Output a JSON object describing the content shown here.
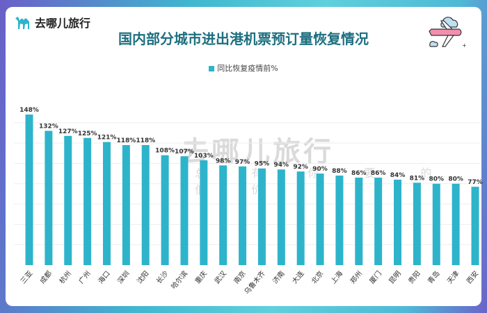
{
  "brand": {
    "name": "去哪儿旅行",
    "watermark": "去哪儿旅行",
    "watermark_sub": "总 有 你 要 的 低 价"
  },
  "chart_data": {
    "type": "bar",
    "title": "国内部分城市进出港机票预订量恢复情况",
    "legend": [
      {
        "name": "同比恢复疫情前%",
        "color": "#2db4cb"
      }
    ],
    "legend_position": "top",
    "categories": [
      "三亚",
      "成都",
      "杭州",
      "广州",
      "海口",
      "深圳",
      "沈阳",
      "长沙",
      "哈尔滨",
      "重庆",
      "武汉",
      "南京",
      "乌鲁木齐",
      "济南",
      "大连",
      "北京",
      "上海",
      "郑州",
      "厦门",
      "昆明",
      "贵阳",
      "青岛",
      "天津",
      "西安"
    ],
    "series": [
      {
        "name": "同比恢复疫情前%",
        "values": [
          148,
          132,
          127,
          125,
          121,
          118,
          118,
          108,
          107,
          103,
          98,
          97,
          95,
          94,
          92,
          90,
          88,
          86,
          86,
          84,
          81,
          80,
          80,
          77
        ]
      }
    ],
    "value_suffix": "%",
    "ylim": [
      0,
      160
    ],
    "grid": true,
    "bar_color": "#2db4cb",
    "xlabel": "",
    "ylabel": ""
  }
}
